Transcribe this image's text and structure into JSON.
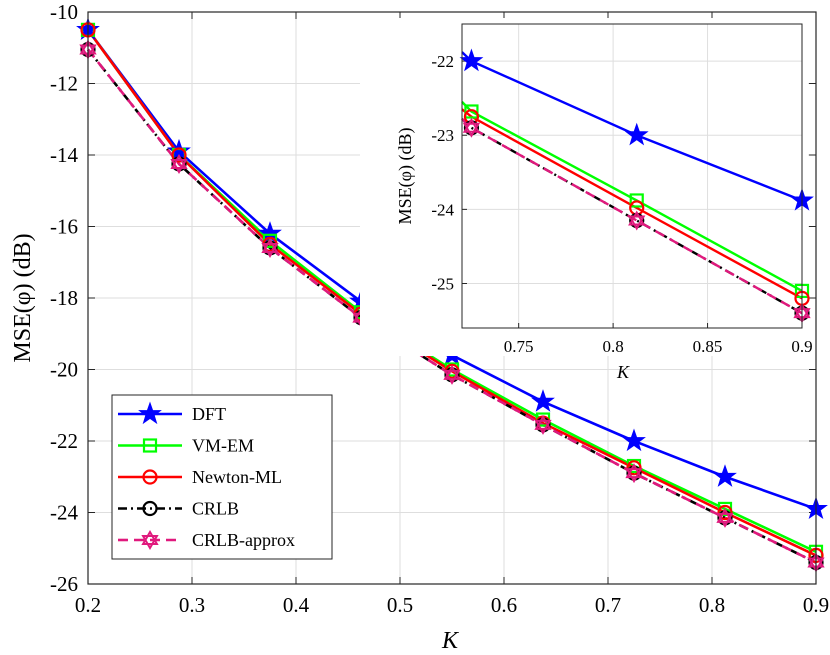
{
  "chart_data": [
    {
      "type": "line",
      "panel": "main",
      "xlabel": "K",
      "ylabel": "MSE(φ) (dB)",
      "xlim": [
        0.2,
        0.9
      ],
      "ylim": [
        -26,
        -10
      ],
      "xticks": [
        "0.2",
        "0.3",
        "0.4",
        "0.5",
        "0.6",
        "0.7",
        "0.8",
        "0.9"
      ],
      "yticks": [
        "-10",
        "-12",
        "-14",
        "-16",
        "-18",
        "-20",
        "-22",
        "-24",
        "-26"
      ],
      "grid": true,
      "legend_position": "bottom-left",
      "x": [
        0.2,
        0.2875,
        0.375,
        0.4625,
        0.55,
        0.6375,
        0.725,
        0.8125,
        0.9
      ],
      "series": [
        {
          "name": "DFT",
          "color": "#0000ff",
          "marker": "star",
          "dash": "solid",
          "values": [
            -10.5,
            -13.9,
            -16.2,
            -18.1,
            -19.6,
            -20.9,
            -22.0,
            -23.0,
            -23.9
          ]
        },
        {
          "name": "VM-EM",
          "color": "#00ff00",
          "marker": "square",
          "dash": "solid",
          "values": [
            -10.5,
            -14.0,
            -16.4,
            -18.4,
            -20.0,
            -21.4,
            -22.7,
            -23.9,
            -25.1
          ]
        },
        {
          "name": "Newton-ML",
          "color": "#ff0000",
          "marker": "circle",
          "dash": "solid",
          "values": [
            -10.5,
            -14.0,
            -16.5,
            -18.45,
            -20.05,
            -21.5,
            -22.75,
            -24.0,
            -25.2
          ]
        },
        {
          "name": "CRLB",
          "color": "#000000",
          "marker": "circle",
          "dash": "dashdot",
          "values": [
            -11.05,
            -14.25,
            -16.6,
            -18.55,
            -20.15,
            -21.55,
            -22.9,
            -24.15,
            -25.4
          ]
        },
        {
          "name": "CRLB-approx",
          "color": "#e0197d",
          "marker": "hexagram",
          "dash": "dashed",
          "values": [
            -11.05,
            -14.25,
            -16.6,
            -18.55,
            -20.15,
            -21.55,
            -22.9,
            -24.15,
            -25.4
          ]
        }
      ]
    },
    {
      "type": "line",
      "panel": "inset",
      "xlabel": "K",
      "ylabel": "MSE(φ) (dB)",
      "xlim": [
        0.72,
        0.9
      ],
      "ylim": [
        -25.6,
        -21.5
      ],
      "xticks": [
        "0.75",
        "0.8",
        "0.85",
        "0.9"
      ],
      "yticks": [
        "-22",
        "-23",
        "-24",
        "-25"
      ],
      "grid": true,
      "x": [
        0.72,
        0.725,
        0.8125,
        0.9
      ],
      "series": [
        {
          "name": "DFT",
          "values": [
            -21.88,
            -22.0,
            -23.0,
            -23.88
          ]
        },
        {
          "name": "VM-EM",
          "values": [
            -22.55,
            -22.68,
            -23.88,
            -25.1
          ]
        },
        {
          "name": "Newton-ML",
          "values": [
            -22.65,
            -22.75,
            -23.98,
            -25.2
          ]
        },
        {
          "name": "CRLB",
          "values": [
            -22.78,
            -22.9,
            -24.15,
            -25.4
          ]
        },
        {
          "name": "CRLB-approx",
          "values": [
            -22.78,
            -22.9,
            -24.15,
            -25.4
          ]
        }
      ]
    }
  ]
}
